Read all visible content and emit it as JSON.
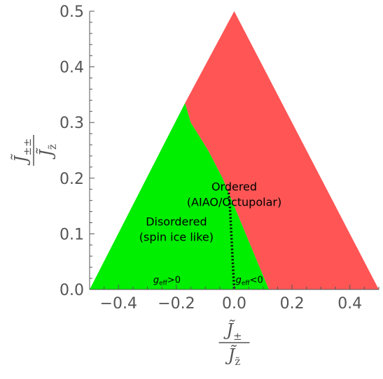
{
  "chart_data": {
    "type": "area",
    "title": "",
    "xlabel": {
      "numerator": "J̃±",
      "numerator_sub": "±",
      "denominator": "J̃z̃",
      "denominator_sub": "z̃"
    },
    "ylabel": {
      "numerator": "J̃±±",
      "numerator_sub": "±±",
      "denominator": "J̃z̃",
      "denominator_sub": "z̃"
    },
    "xlim": [
      -0.5,
      0.5
    ],
    "ylim": [
      0,
      0.5
    ],
    "x_ticks": [
      "−0.4",
      "−0.2",
      "0.0",
      "0.2",
      "0.4"
    ],
    "x_tick_values": [
      -0.4,
      -0.2,
      0.0,
      0.2,
      0.4
    ],
    "y_ticks": [
      "0.0",
      "0.1",
      "0.2",
      "0.3",
      "0.4",
      "0.5"
    ],
    "y_tick_values": [
      0.0,
      0.1,
      0.2,
      0.3,
      0.4,
      0.5
    ],
    "grid": false,
    "colors": {
      "ordered": "#ff5555",
      "disordered": "#00ee00",
      "axis": "#555555",
      "boundary": "#000000"
    },
    "regions": [
      {
        "name": "disordered",
        "label_lines": [
          "Disordered",
          "(spin ice like)"
        ],
        "polygon": [
          [
            -0.5,
            0.0
          ],
          [
            0.12,
            0.0
          ],
          [
            0.08,
            0.05
          ],
          [
            0.04,
            0.1
          ],
          [
            0.0,
            0.15
          ],
          [
            -0.04,
            0.2
          ],
          [
            -0.09,
            0.25
          ],
          [
            -0.15,
            0.3
          ],
          [
            -0.17,
            0.335
          ]
        ]
      },
      {
        "name": "ordered",
        "label_lines": [
          "Ordered",
          "(AIAO/Octupolar)"
        ],
        "polygon": [
          [
            -0.17,
            0.335
          ],
          [
            -0.15,
            0.3
          ],
          [
            -0.09,
            0.25
          ],
          [
            -0.04,
            0.2
          ],
          [
            0.0,
            0.15
          ],
          [
            0.04,
            0.1
          ],
          [
            0.08,
            0.05
          ],
          [
            0.12,
            0.0
          ],
          [
            0.5,
            0.0
          ],
          [
            0.0,
            0.5
          ]
        ]
      }
    ],
    "geff_line": {
      "style": "dotted",
      "points": [
        [
          -0.02,
          0.18
        ],
        [
          -0.015,
          0.15
        ],
        [
          -0.01,
          0.1
        ],
        [
          -0.005,
          0.05
        ],
        [
          0.0,
          0.0
        ]
      ]
    },
    "annotations": [
      {
        "main": "g",
        "sub": "eff",
        "suffix": ">0",
        "x": -0.28,
        "y": 0.012
      },
      {
        "main": "g",
        "sub": "eff",
        "suffix": "<0",
        "x": 0.005,
        "y": 0.012
      }
    ]
  }
}
